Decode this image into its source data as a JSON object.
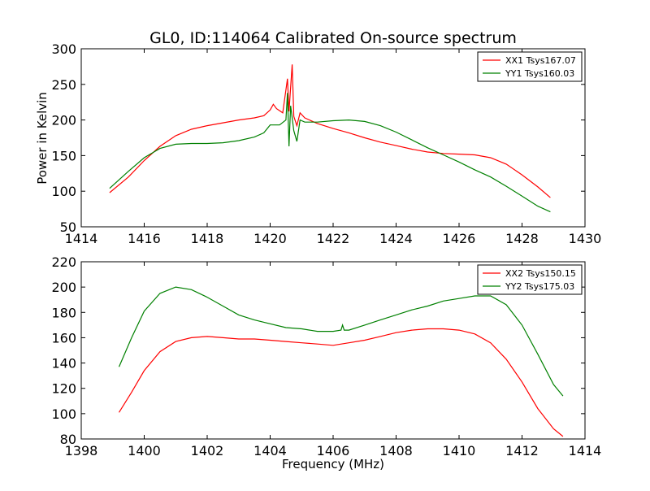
{
  "figure_title": "GL0, ID:114064 Calibrated On-source spectrum",
  "colors": {
    "red": "#ff0000",
    "green": "#008000"
  },
  "chart_data": [
    {
      "type": "line",
      "title": "GL0, ID:114064 Calibrated On-source spectrum",
      "xlabel": "",
      "ylabel": "Power in Kelvin",
      "xlim": [
        1414,
        1430
      ],
      "ylim": [
        50,
        300
      ],
      "xticks": [
        "1414",
        "1416",
        "1418",
        "1420",
        "1422",
        "1424",
        "1426",
        "1428",
        "1430"
      ],
      "yticks": [
        "50",
        "100",
        "150",
        "200",
        "250",
        "300"
      ],
      "legend_position": "top-right",
      "series": [
        {
          "name": "XX1 Tsys167.07",
          "color": "#ff0000",
          "points": [
            [
              1414.9,
              98
            ],
            [
              1415.5,
              120
            ],
            [
              1416.0,
              143
            ],
            [
              1416.5,
              163
            ],
            [
              1417.0,
              178
            ],
            [
              1417.5,
              187
            ],
            [
              1418.0,
              192
            ],
            [
              1418.5,
              196
            ],
            [
              1419.0,
              200
            ],
            [
              1419.5,
              203
            ],
            [
              1419.8,
              206
            ],
            [
              1420.0,
              214
            ],
            [
              1420.1,
              222
            ],
            [
              1420.2,
              216
            ],
            [
              1420.4,
              210
            ],
            [
              1420.55,
              258
            ],
            [
              1420.6,
              212
            ],
            [
              1420.7,
              278
            ],
            [
              1420.75,
              205
            ],
            [
              1420.85,
              192
            ],
            [
              1420.95,
              210
            ],
            [
              1421.1,
              203
            ],
            [
              1421.5,
              195
            ],
            [
              1422.0,
              188
            ],
            [
              1422.5,
              182
            ],
            [
              1423.0,
              175
            ],
            [
              1423.5,
              169
            ],
            [
              1424.0,
              164
            ],
            [
              1424.5,
              159
            ],
            [
              1425.0,
              155
            ],
            [
              1425.5,
              153
            ],
            [
              1426.0,
              152
            ],
            [
              1426.5,
              151
            ],
            [
              1427.0,
              147
            ],
            [
              1427.5,
              138
            ],
            [
              1428.0,
              123
            ],
            [
              1428.5,
              106
            ],
            [
              1428.9,
              91
            ]
          ]
        },
        {
          "name": "YY1 Tsys160.03",
          "color": "#008000",
          "points": [
            [
              1414.9,
              104
            ],
            [
              1415.5,
              128
            ],
            [
              1416.0,
              147
            ],
            [
              1416.5,
              160
            ],
            [
              1417.0,
              166
            ],
            [
              1417.5,
              167
            ],
            [
              1418.0,
              167
            ],
            [
              1418.5,
              168
            ],
            [
              1419.0,
              171
            ],
            [
              1419.5,
              176
            ],
            [
              1419.8,
              182
            ],
            [
              1420.0,
              193
            ],
            [
              1420.3,
              193
            ],
            [
              1420.5,
              200
            ],
            [
              1420.55,
              238
            ],
            [
              1420.6,
              163
            ],
            [
              1420.65,
              220
            ],
            [
              1420.75,
              185
            ],
            [
              1420.85,
              170
            ],
            [
              1420.95,
              200
            ],
            [
              1421.1,
              197
            ],
            [
              1421.5,
              197
            ],
            [
              1422.0,
              199
            ],
            [
              1422.5,
              200
            ],
            [
              1423.0,
              198
            ],
            [
              1423.5,
              192
            ],
            [
              1424.0,
              183
            ],
            [
              1424.5,
              172
            ],
            [
              1425.0,
              161
            ],
            [
              1425.5,
              151
            ],
            [
              1426.0,
              141
            ],
            [
              1426.5,
              130
            ],
            [
              1427.0,
              120
            ],
            [
              1427.5,
              107
            ],
            [
              1428.0,
              93
            ],
            [
              1428.5,
              79
            ],
            [
              1428.9,
              71
            ]
          ]
        }
      ]
    },
    {
      "type": "line",
      "title": "",
      "xlabel": "Frequency (MHz)",
      "ylabel": "",
      "xlim": [
        1398,
        1414
      ],
      "ylim": [
        80,
        220
      ],
      "xticks": [
        "1398",
        "1400",
        "1402",
        "1404",
        "1406",
        "1408",
        "1410",
        "1412",
        "1414"
      ],
      "yticks": [
        "80",
        "100",
        "120",
        "140",
        "160",
        "180",
        "200",
        "220"
      ],
      "legend_position": "top-right",
      "series": [
        {
          "name": "XX2 Tsys150.15",
          "color": "#ff0000",
          "points": [
            [
              1399.2,
              101
            ],
            [
              1399.6,
              117
            ],
            [
              1400.0,
              134
            ],
            [
              1400.5,
              149
            ],
            [
              1401.0,
              157
            ],
            [
              1401.5,
              160
            ],
            [
              1402.0,
              161
            ],
            [
              1402.5,
              160
            ],
            [
              1403.0,
              159
            ],
            [
              1403.5,
              159
            ],
            [
              1404.0,
              158
            ],
            [
              1404.5,
              157
            ],
            [
              1405.0,
              156
            ],
            [
              1405.5,
              155
            ],
            [
              1406.0,
              154
            ],
            [
              1406.5,
              156
            ],
            [
              1407.0,
              158
            ],
            [
              1407.5,
              161
            ],
            [
              1408.0,
              164
            ],
            [
              1408.5,
              166
            ],
            [
              1409.0,
              167
            ],
            [
              1409.5,
              167
            ],
            [
              1410.0,
              166
            ],
            [
              1410.5,
              163
            ],
            [
              1411.0,
              156
            ],
            [
              1411.5,
              143
            ],
            [
              1412.0,
              125
            ],
            [
              1412.5,
              104
            ],
            [
              1413.0,
              88
            ],
            [
              1413.3,
              82
            ]
          ]
        },
        {
          "name": "YY2 Tsys175.03",
          "color": "#008000",
          "points": [
            [
              1399.2,
              137
            ],
            [
              1399.6,
              160
            ],
            [
              1400.0,
              181
            ],
            [
              1400.5,
              195
            ],
            [
              1401.0,
              200
            ],
            [
              1401.5,
              198
            ],
            [
              1402.0,
              192
            ],
            [
              1402.5,
              185
            ],
            [
              1403.0,
              178
            ],
            [
              1403.5,
              174
            ],
            [
              1404.0,
              171
            ],
            [
              1404.5,
              168
            ],
            [
              1405.0,
              167
            ],
            [
              1405.5,
              165
            ],
            [
              1406.0,
              165
            ],
            [
              1406.25,
              166
            ],
            [
              1406.3,
              170
            ],
            [
              1406.35,
              166
            ],
            [
              1406.5,
              166
            ],
            [
              1407.0,
              170
            ],
            [
              1407.5,
              174
            ],
            [
              1408.0,
              178
            ],
            [
              1408.5,
              182
            ],
            [
              1409.0,
              185
            ],
            [
              1409.5,
              189
            ],
            [
              1410.0,
              191
            ],
            [
              1410.5,
              193
            ],
            [
              1411.0,
              193
            ],
            [
              1411.5,
              186
            ],
            [
              1412.0,
              170
            ],
            [
              1412.5,
              147
            ],
            [
              1413.0,
              123
            ],
            [
              1413.3,
              114
            ]
          ]
        }
      ]
    }
  ]
}
